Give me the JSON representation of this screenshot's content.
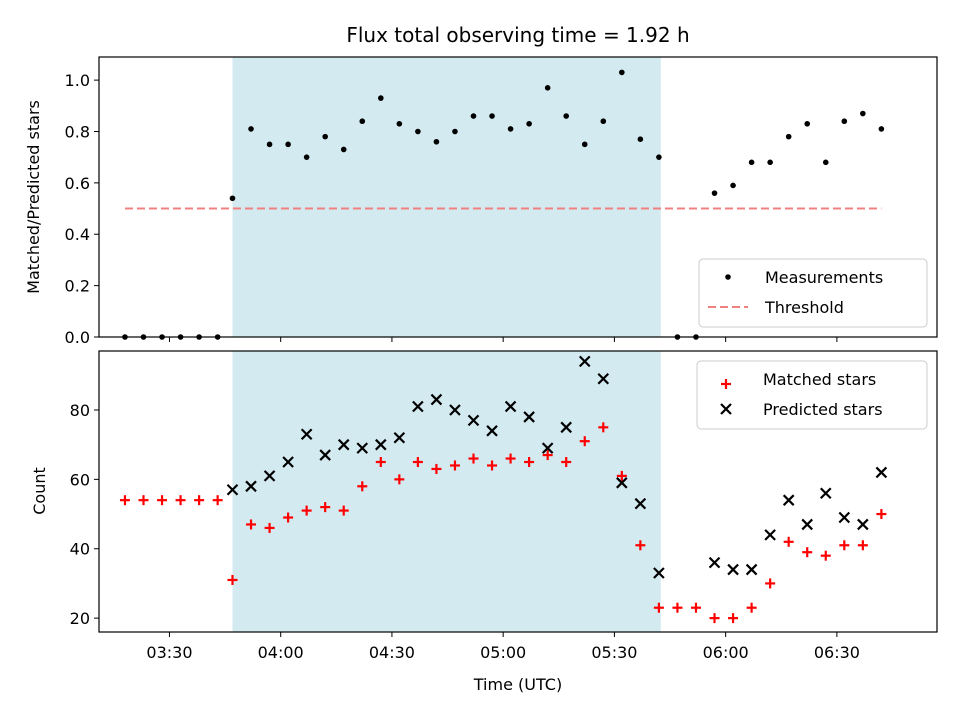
{
  "chart_data": {
    "title": "Flux total observing time = 1.92 h",
    "xlabel": "Time (UTC)",
    "x_tick_labels": [
      "03:30",
      "04:00",
      "04:30",
      "05:00",
      "05:30",
      "06:00",
      "06:30"
    ],
    "x_ticks": [
      "03:30",
      "04:00",
      "04:30",
      "05:00",
      "05:30",
      "06:00",
      "06:30"
    ],
    "xlim": [
      "03:11",
      "06:57"
    ],
    "shaded_span": [
      "03:47",
      "05:42.5"
    ],
    "shade_color": "#d3eaf0",
    "panels": [
      {
        "type": "scatter",
        "ylabel": "Matched/Predicted stars",
        "ylim": [
          0,
          1.09
        ],
        "y_ticks": [
          0.0,
          0.2,
          0.4,
          0.6,
          0.8,
          1.0
        ],
        "y_tick_labels": [
          "0.0",
          "0.2",
          "0.4",
          "0.6",
          "0.8",
          "1.0"
        ],
        "legend_position": "lower-right",
        "series": [
          {
            "name": "Measurements",
            "marker": "dot",
            "color": "#000000",
            "x": [
              "03:18",
              "03:23",
              "03:28",
              "03:33",
              "03:38",
              "03:43",
              "03:47",
              "03:52",
              "03:57",
              "04:02",
              "04:07",
              "04:12",
              "04:17",
              "04:22",
              "04:27",
              "04:32",
              "04:37",
              "04:42",
              "04:47",
              "04:52",
              "04:57",
              "05:02",
              "05:07",
              "05:12",
              "05:17",
              "05:22",
              "05:27",
              "05:32",
              "05:37",
              "05:42",
              "05:47",
              "05:52",
              "05:57",
              "06:02",
              "06:07",
              "06:12",
              "06:17",
              "06:22",
              "06:27",
              "06:32",
              "06:37",
              "06:42"
            ],
            "y": [
              0.0,
              0.0,
              0.0,
              0.0,
              0.0,
              0.0,
              0.54,
              0.81,
              0.75,
              0.75,
              0.7,
              0.78,
              0.73,
              0.84,
              0.93,
              0.83,
              0.8,
              0.76,
              0.8,
              0.86,
              0.86,
              0.81,
              0.83,
              0.97,
              0.86,
              0.75,
              0.84,
              1.03,
              0.77,
              0.7,
              0.0,
              0.0,
              0.56,
              0.59,
              0.68,
              0.68,
              0.78,
              0.83,
              0.68,
              0.84,
              0.87,
              0.81
            ]
          },
          {
            "name": "Threshold",
            "marker": "dashed-line",
            "color": "#f08080",
            "x": [
              "03:18",
              "06:42"
            ],
            "y": [
              0.5,
              0.5
            ]
          }
        ]
      },
      {
        "type": "scatter",
        "ylabel": "Count",
        "ylim": [
          16,
          97
        ],
        "y_ticks": [
          20,
          40,
          60,
          80
        ],
        "y_tick_labels": [
          "20",
          "40",
          "60",
          "80"
        ],
        "legend_position": "upper-right",
        "series": [
          {
            "name": "Matched stars",
            "marker": "plus",
            "color": "#ff0000",
            "x": [
              "03:18",
              "03:23",
              "03:28",
              "03:33",
              "03:38",
              "03:43",
              "03:47",
              "03:52",
              "03:57",
              "04:02",
              "04:07",
              "04:12",
              "04:17",
              "04:22",
              "04:27",
              "04:32",
              "04:37",
              "04:42",
              "04:47",
              "04:52",
              "04:57",
              "05:02",
              "05:07",
              "05:12",
              "05:17",
              "05:22",
              "05:27",
              "05:32",
              "05:37",
              "05:42",
              "05:47",
              "05:52",
              "05:57",
              "06:02",
              "06:07",
              "06:12",
              "06:17",
              "06:22",
              "06:27",
              "06:32",
              "06:37",
              "06:42"
            ],
            "y": [
              54,
              54,
              54,
              54,
              54,
              54,
              31,
              47,
              46,
              49,
              51,
              52,
              51,
              58,
              65,
              60,
              65,
              63,
              64,
              66,
              64,
              66,
              65,
              67,
              65,
              71,
              75,
              61,
              41,
              23,
              23,
              23,
              20,
              20,
              23,
              30,
              42,
              39,
              38,
              41,
              41,
              50
            ]
          },
          {
            "name": "Predicted stars",
            "marker": "x",
            "color": "#000000",
            "x": [
              "03:47",
              "03:52",
              "03:57",
              "04:02",
              "04:07",
              "04:12",
              "04:17",
              "04:22",
              "04:27",
              "04:32",
              "04:37",
              "04:42",
              "04:47",
              "04:52",
              "04:57",
              "05:02",
              "05:07",
              "05:12",
              "05:17",
              "05:22",
              "05:27",
              "05:32",
              "05:37",
              "05:42",
              "05:57",
              "06:02",
              "06:07",
              "06:12",
              "06:17",
              "06:22",
              "06:27",
              "06:32",
              "06:37",
              "06:42"
            ],
            "y": [
              57,
              58,
              61,
              65,
              73,
              67,
              70,
              69,
              70,
              72,
              81,
              83,
              80,
              77,
              74,
              81,
              78,
              69,
              75,
              94,
              89,
              59,
              53,
              33,
              36,
              34,
              34,
              44,
              54,
              47,
              56,
              49,
              47,
              62
            ]
          }
        ]
      }
    ]
  }
}
